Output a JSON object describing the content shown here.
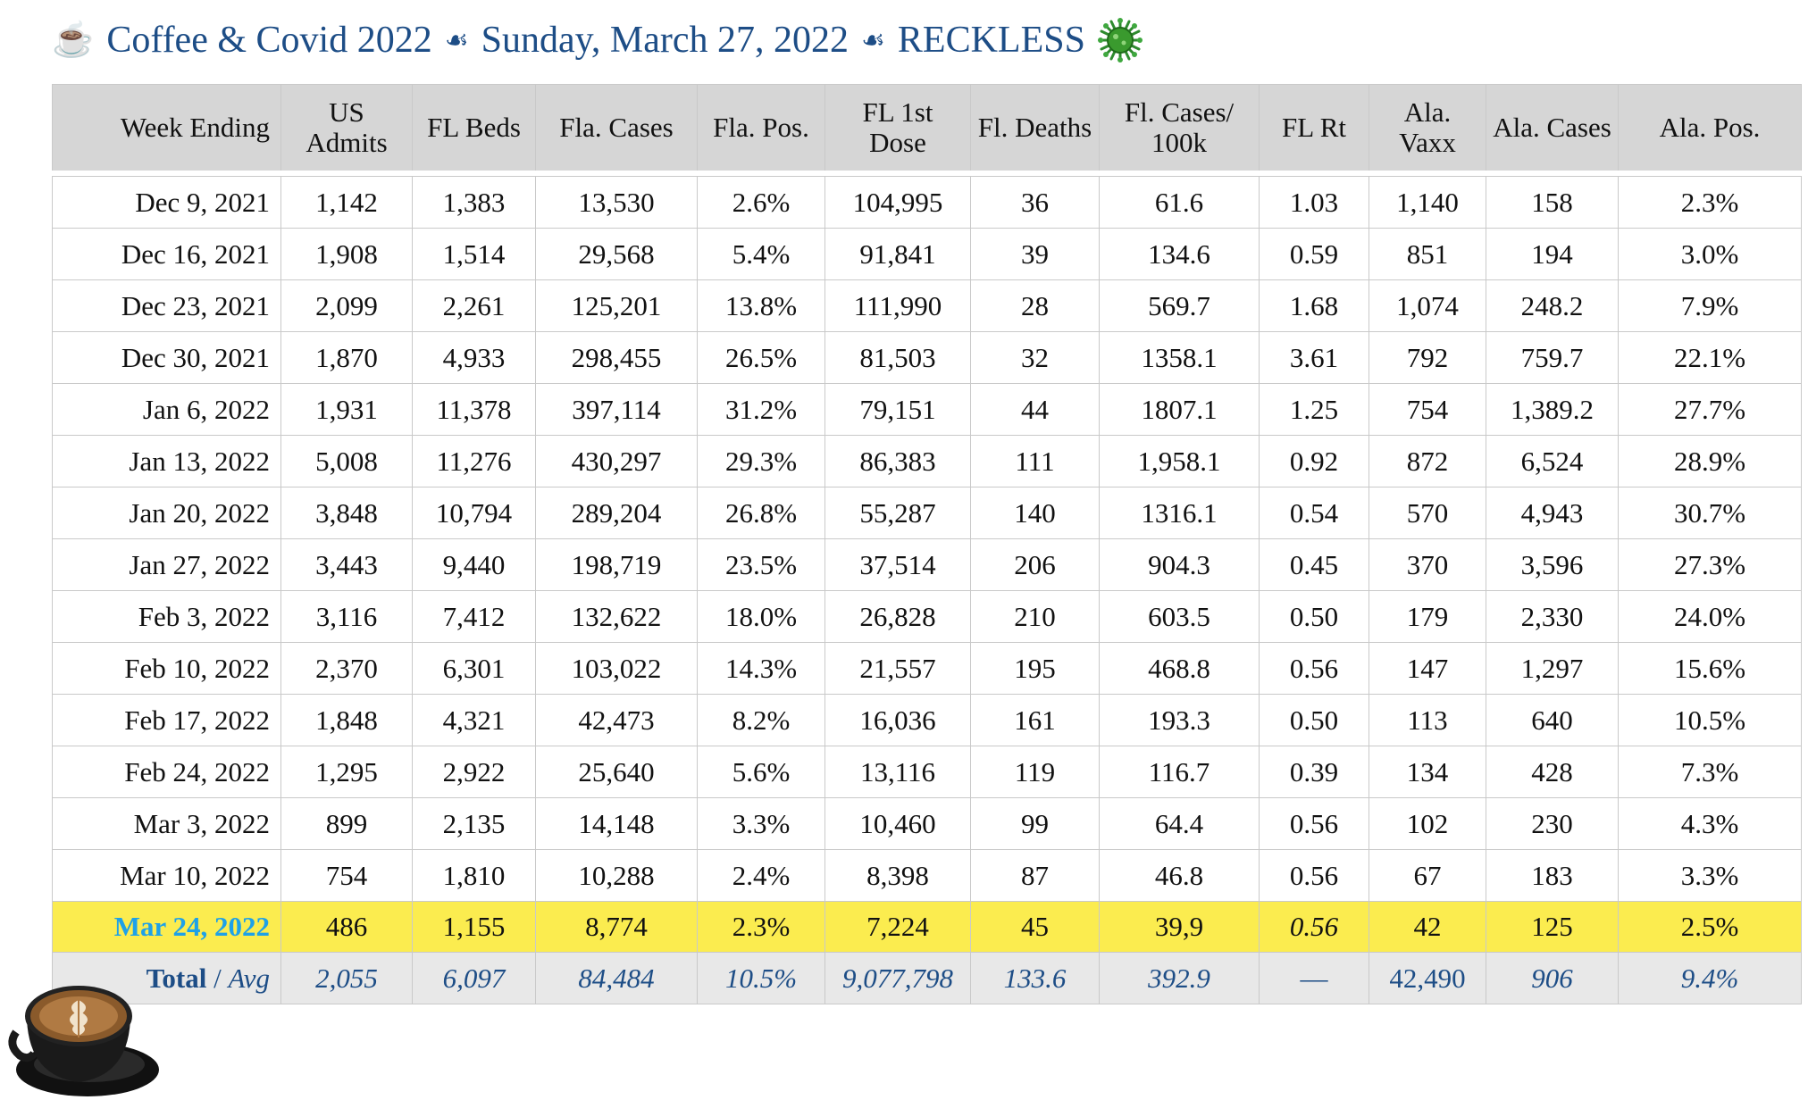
{
  "title": {
    "part1": "Coffee & Covid 2022",
    "part2": "Sunday, March 27, 2022",
    "part3": "RECKLESS",
    "separator": "☙"
  },
  "table": {
    "headers": [
      "Week Ending",
      "US Admits",
      "FL Beds",
      "Fla. Cases",
      "Fla. Pos.",
      "FL 1st Dose",
      "Fl. Deaths",
      "Fl. Cases/ 100k",
      "FL Rt",
      "Ala. Vaxx",
      "Ala. Cases",
      "Ala. Pos."
    ],
    "rows": [
      [
        "Dec 9, 2021",
        "1,142",
        "1,383",
        "13,530",
        "2.6%",
        "104,995",
        "36",
        "61.6",
        "1.03",
        "1,140",
        "158",
        "2.3%"
      ],
      [
        "Dec 16, 2021",
        "1,908",
        "1,514",
        "29,568",
        "5.4%",
        "91,841",
        "39",
        "134.6",
        "0.59",
        "851",
        "194",
        "3.0%"
      ],
      [
        "Dec 23, 2021",
        "2,099",
        "2,261",
        "125,201",
        "13.8%",
        "111,990",
        "28",
        "569.7",
        "1.68",
        "1,074",
        "248.2",
        "7.9%"
      ],
      [
        "Dec 30, 2021",
        "1,870",
        "4,933",
        "298,455",
        "26.5%",
        "81,503",
        "32",
        "1358.1",
        "3.61",
        "792",
        "759.7",
        "22.1%"
      ],
      [
        "Jan 6, 2022",
        "1,931",
        "11,378",
        "397,114",
        "31.2%",
        "79,151",
        "44",
        "1807.1",
        "1.25",
        "754",
        "1,389.2",
        "27.7%"
      ],
      [
        "Jan 13, 2022",
        "5,008",
        "11,276",
        "430,297",
        "29.3%",
        "86,383",
        "111",
        "1,958.1",
        "0.92",
        "872",
        "6,524",
        "28.9%"
      ],
      [
        "Jan 20, 2022",
        "3,848",
        "10,794",
        "289,204",
        "26.8%",
        "55,287",
        "140",
        "1316.1",
        "0.54",
        "570",
        "4,943",
        "30.7%"
      ],
      [
        "Jan 27, 2022",
        "3,443",
        "9,440",
        "198,719",
        "23.5%",
        "37,514",
        "206",
        "904.3",
        "0.45",
        "370",
        "3,596",
        "27.3%"
      ],
      [
        "Feb 3, 2022",
        "3,116",
        "7,412",
        "132,622",
        "18.0%",
        "26,828",
        "210",
        "603.5",
        "0.50",
        "179",
        "2,330",
        "24.0%"
      ],
      [
        "Feb 10, 2022",
        "2,370",
        "6,301",
        "103,022",
        "14.3%",
        "21,557",
        "195",
        "468.8",
        "0.56",
        "147",
        "1,297",
        "15.6%"
      ],
      [
        "Feb 17, 2022",
        "1,848",
        "4,321",
        "42,473",
        "8.2%",
        "16,036",
        "161",
        "193.3",
        "0.50",
        "113",
        "640",
        "10.5%"
      ],
      [
        "Feb 24, 2022",
        "1,295",
        "2,922",
        "25,640",
        "5.6%",
        "13,116",
        "119",
        "116.7",
        "0.39",
        "134",
        "428",
        "7.3%"
      ],
      [
        "Mar 3, 2022",
        "899",
        "2,135",
        "14,148",
        "3.3%",
        "10,460",
        "99",
        "64.4",
        "0.56",
        "102",
        "230",
        "4.3%"
      ],
      [
        "Mar 10, 2022",
        "754",
        "1,810",
        "10,288",
        "2.4%",
        "8,398",
        "87",
        "46.8",
        "0.56",
        "67",
        "183",
        "3.3%"
      ]
    ],
    "highlight_row": [
      "Mar 24, 2022",
      "486",
      "1,155",
      "8,774",
      "2.3%",
      "7,224",
      "45",
      "39,9",
      "0.56",
      "42",
      "125",
      "2.5%"
    ],
    "total_row": {
      "label_total": "Total",
      "label_sep": " / ",
      "label_avg": "Avg",
      "values": [
        "2,055",
        "6,097",
        "84,484",
        "10.5%",
        "9,077,798",
        "133.6",
        "392.9",
        "—",
        "42,490",
        "906",
        "9.4%"
      ]
    }
  },
  "colors": {
    "title": "#1d4d86",
    "header_bg": "#d6d6d6",
    "highlight_bg": "#fbec4f",
    "highlight_date": "#1ea1e8",
    "total_bg": "#e8e8e8",
    "total_text": "#1d4d86"
  }
}
